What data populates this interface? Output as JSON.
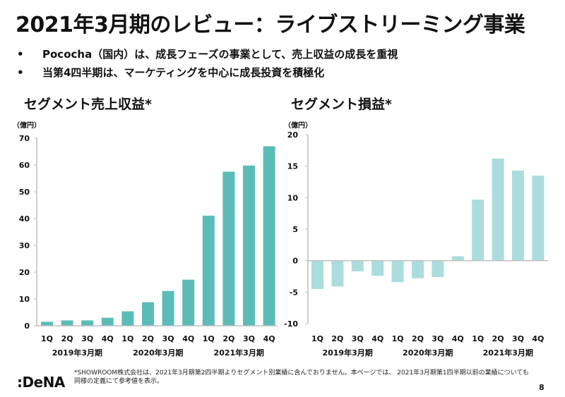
{
  "title": "2021年3月期のレビュー：ライブストリーミング事業",
  "bullets": [
    "Pococha（国内）は、成長フェーズの事業として、売上収益の成長を重視",
    "当第4四半期は、マーケティングを中心に成長投資を積極化"
  ],
  "bullet_glyph": "•",
  "footnote": "*SHOWROOM株式会社は、2021年3月期第2四半期よりセグメント別業績に含んでおりません。本ページでは、 2021年3月期第1四半期以前の業績についても同様の定義にて参考値を表示。",
  "logo": ":DeNA",
  "page_number": "8",
  "colors": {
    "revenue_bar": "#5bbcb7",
    "profit_bar": "#abdddc",
    "axis": "#bfbfbf"
  },
  "chart_data": [
    {
      "type": "bar",
      "title": "セグメント売上収益*",
      "unit_label": "（億円）",
      "categories": [
        "1Q",
        "2Q",
        "3Q",
        "4Q",
        "1Q",
        "2Q",
        "3Q",
        "4Q",
        "1Q",
        "2Q",
        "3Q",
        "4Q"
      ],
      "groups": [
        "2019年3月期",
        "2020年3月期",
        "2021年3月期"
      ],
      "values": [
        1.5,
        2.0,
        2.0,
        3.0,
        5.4,
        8.8,
        13.0,
        17.2,
        41.1,
        57.5,
        59.8,
        67.0
      ],
      "ylim": [
        0,
        70
      ],
      "yticks": [
        0,
        10,
        20,
        30,
        40,
        50,
        60,
        70
      ],
      "grid": false,
      "xlabel": "",
      "ylabel": ""
    },
    {
      "type": "bar",
      "title": "セグメント損益*",
      "unit_label": "（億円）",
      "categories": [
        "1Q",
        "2Q",
        "3Q",
        "4Q",
        "1Q",
        "2Q",
        "3Q",
        "4Q",
        "1Q",
        "2Q",
        "3Q",
        "4Q"
      ],
      "groups": [
        "2019年3月期",
        "2020年3月期",
        "2021年3月期"
      ],
      "values": [
        -4.5,
        -4.1,
        -1.7,
        -2.4,
        -3.4,
        -2.8,
        -2.6,
        0.7,
        9.7,
        16.2,
        14.3,
        13.5
      ],
      "ylim": [
        -10,
        20
      ],
      "yticks": [
        -10,
        -5,
        0,
        5,
        10,
        15,
        20
      ],
      "grid": false,
      "xlabel": "",
      "ylabel": ""
    }
  ]
}
